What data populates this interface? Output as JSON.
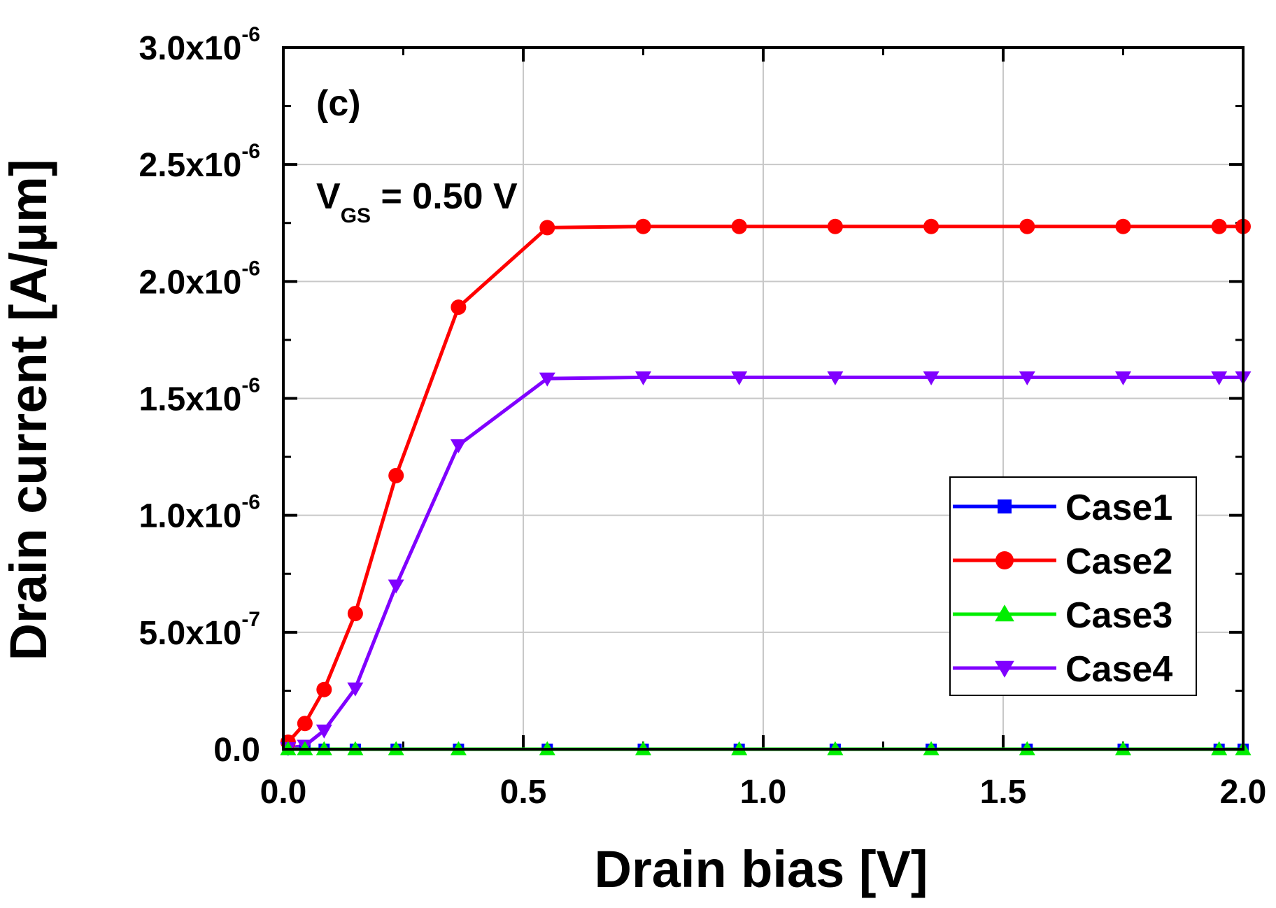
{
  "chart_data": {
    "type": "line",
    "title": "",
    "xlabel": "Drain bias [V]",
    "ylabel": "Drain current [A/µm]",
    "xlim": [
      0.0,
      2.0
    ],
    "ylim": [
      0.0,
      3e-06
    ],
    "grid": true,
    "legend_position": "bottom-right",
    "x_ticks": [
      0.0,
      0.5,
      1.0,
      1.5,
      2.0
    ],
    "x_tick_labels": [
      "0.0",
      "0.5",
      "1.0",
      "1.5",
      "2.0"
    ],
    "y_ticks": [
      0.0,
      5e-07,
      1e-06,
      1.5e-06,
      2e-06,
      2.5e-06,
      3e-06
    ],
    "y_tick_labels": [
      {
        "mantissa": "0.0",
        "exponent": ""
      },
      {
        "mantissa": "5.0x10",
        "exponent": "-7"
      },
      {
        "mantissa": "1.0x10",
        "exponent": "-6"
      },
      {
        "mantissa": "1.5x10",
        "exponent": "-6"
      },
      {
        "mantissa": "2.0x10",
        "exponent": "-6"
      },
      {
        "mantissa": "2.5x10",
        "exponent": "-6"
      },
      {
        "mantissa": "3.0x10",
        "exponent": "-6"
      }
    ],
    "annotations": {
      "panel": "(c)",
      "vgs_main": "V",
      "vgs_sub": "GS",
      "vgs_value": " = 0.50 V"
    },
    "x": [
      0.01,
      0.045,
      0.085,
      0.15,
      0.235,
      0.365,
      0.55,
      0.75,
      0.95,
      1.15,
      1.35,
      1.55,
      1.75,
      1.95,
      2.0
    ],
    "series": [
      {
        "name": "Case1",
        "color": "#0000ff",
        "marker": "square",
        "values": [
          0,
          0,
          0,
          0,
          0,
          0,
          0,
          0,
          0,
          0,
          0,
          0,
          0,
          0,
          0
        ]
      },
      {
        "name": "Case2",
        "color": "#ff0000",
        "marker": "circle",
        "values": [
          3e-08,
          1.1e-07,
          2.55e-07,
          5.8e-07,
          1.17e-06,
          1.89e-06,
          2.23e-06,
          2.235e-06,
          2.235e-06,
          2.235e-06,
          2.235e-06,
          2.235e-06,
          2.235e-06,
          2.235e-06,
          2.235e-06
        ]
      },
      {
        "name": "Case3",
        "color": "#00ee00",
        "marker": "triangle-up",
        "values": [
          0,
          0,
          0,
          0,
          0,
          0,
          0,
          0,
          0,
          0,
          0,
          0,
          0,
          0,
          0
        ]
      },
      {
        "name": "Case4",
        "color": "#8000ff",
        "marker": "triangle-down",
        "values": [
          5e-09,
          1.5e-08,
          8e-08,
          2.6e-07,
          7e-07,
          1.3e-06,
          1.585e-06,
          1.59e-06,
          1.59e-06,
          1.59e-06,
          1.59e-06,
          1.59e-06,
          1.59e-06,
          1.59e-06,
          1.59e-06
        ]
      }
    ]
  }
}
